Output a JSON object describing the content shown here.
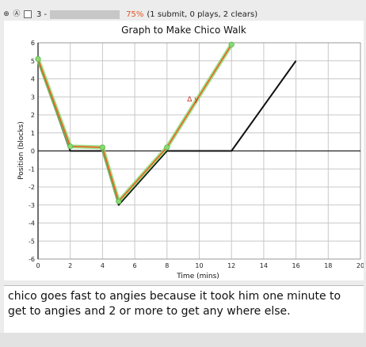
{
  "toolbar": {
    "icons": [
      "plus-circle-icon",
      "recycle-icon",
      "checkbox-icon"
    ],
    "item_id": "3 -",
    "percent": "75%",
    "stats": "(1 submit, 0 plays, 2 clears)",
    "percent_color": "#e2552a"
  },
  "answer": {
    "text": "chico goes fast to angies because it took him one minute to get to angies and 2 or more to get any where else."
  },
  "chart_data": {
    "type": "line",
    "title": "Graph to Make Chico Walk",
    "xlabel": "Time (mins)",
    "ylabel": "Position (blocks)",
    "xlim": [
      0,
      20
    ],
    "ylim": [
      -6,
      6
    ],
    "xticks": [
      0,
      2,
      4,
      6,
      8,
      10,
      12,
      14,
      16,
      18,
      20
    ],
    "yticks": [
      -6,
      -5,
      -4,
      -3,
      -2,
      -1,
      0,
      1,
      2,
      3,
      4,
      5,
      6
    ],
    "grid": true,
    "annotation": {
      "text": "Δ y",
      "x": 9.6,
      "y": 2.75,
      "color": "#cc3322"
    },
    "series": [
      {
        "color": "#111111",
        "x": [
          0,
          2,
          4,
          5,
          8,
          12,
          16
        ],
        "y": [
          5,
          0,
          0,
          -3,
          0,
          0,
          5
        ]
      },
      {
        "color": "#e8641e",
        "halo": "#88d873",
        "markers": true,
        "x": [
          0,
          2,
          4,
          5,
          8,
          12
        ],
        "y": [
          5.1,
          0.25,
          0.2,
          -2.8,
          0.2,
          5.9
        ]
      }
    ]
  }
}
